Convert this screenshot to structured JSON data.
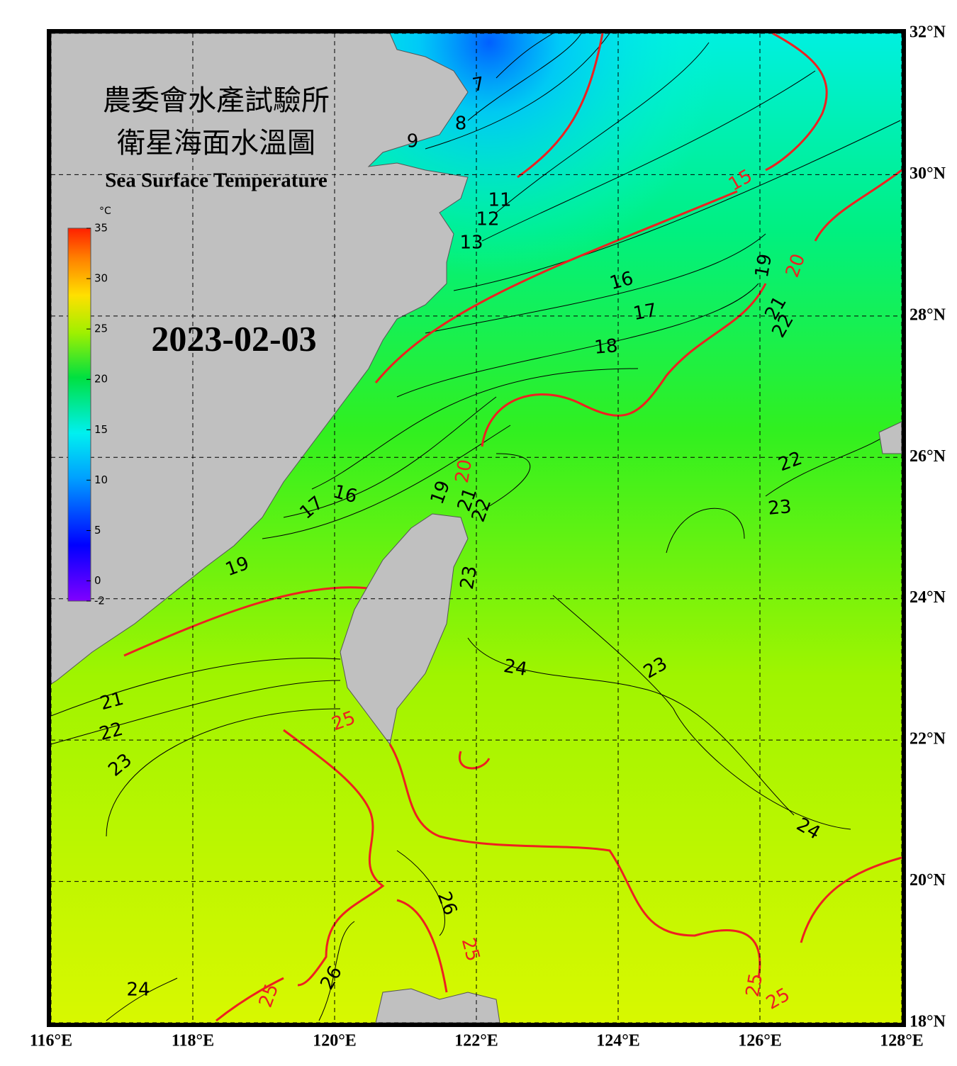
{
  "header": {
    "title_zh_1": "農委會水產試驗所",
    "title_zh_2": "衛星海面水溫圖",
    "title_en": "Sea Surface Temperature",
    "date": "2023-02-03"
  },
  "colorbar": {
    "unit": "°C",
    "lim": [
      -2,
      35
    ],
    "ticks": [
      35,
      30,
      25,
      20,
      15,
      10,
      5,
      0,
      -2
    ]
  },
  "map": {
    "lon_lim": [
      116,
      128
    ],
    "lat_lim": [
      18,
      32
    ],
    "lon_ticks": [
      {
        "value": 116,
        "label": "116°E"
      },
      {
        "value": 118,
        "label": "118°E"
      },
      {
        "value": 120,
        "label": "120°E"
      },
      {
        "value": 122,
        "label": "122°E"
      },
      {
        "value": 124,
        "label": "124°E"
      },
      {
        "value": 126,
        "label": "126°E"
      },
      {
        "value": 128,
        "label": "128°E"
      }
    ],
    "lat_ticks": [
      {
        "value": 32,
        "label": "32°N"
      },
      {
        "value": 30,
        "label": "30°N"
      },
      {
        "value": 28,
        "label": "28°N"
      },
      {
        "value": 26,
        "label": "26°N"
      },
      {
        "value": 24,
        "label": "24°N"
      },
      {
        "value": 22,
        "label": "22°N"
      },
      {
        "value": 20,
        "label": "20°N"
      },
      {
        "value": 18,
        "label": "18°N"
      }
    ],
    "grid": true,
    "isotherm_labels": [
      7,
      8,
      9,
      11,
      12,
      13,
      16,
      17,
      18,
      19,
      21,
      22,
      22,
      23,
      16,
      17,
      19,
      21,
      22,
      23,
      19,
      24,
      23,
      21,
      22,
      23,
      24,
      26,
      26,
      24,
      15,
      20,
      20,
      25,
      25,
      25,
      25,
      25
    ]
  }
}
